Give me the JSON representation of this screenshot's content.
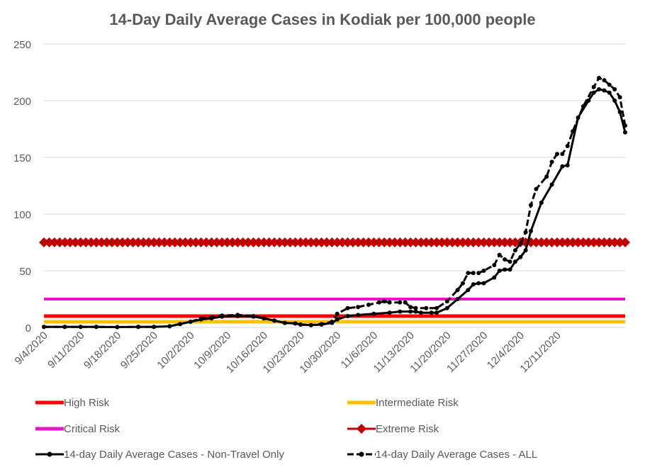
{
  "chart_data": {
    "type": "line",
    "title": "14-Day Daily Average Cases in Kodiak per 100,000 people",
    "xlabel": "",
    "ylabel": "",
    "ylim": [
      0,
      250
    ],
    "yticks": [
      0,
      50,
      100,
      150,
      200,
      250
    ],
    "x_start": "9/4/2020",
    "x_end": "12/17/2020",
    "x_tick_labels": [
      "9/4/2020",
      "9/11/2020",
      "9/18/2020",
      "9/25/2020",
      "10/2/2020",
      "10/9/2020",
      "10/16/2020",
      "10/23/2020",
      "10/30/2020",
      "11/6/2020",
      "11/13/2020",
      "11/20/2020",
      "11/27/2020",
      "12/4/2020",
      "12/11/2020"
    ],
    "grid": "horizontal",
    "legend_position": "bottom",
    "series": [
      {
        "name": "High Risk",
        "color": "#ff0000",
        "style": "line",
        "values": [
          10
        ]
      },
      {
        "name": "Intermediate Risk",
        "color": "#ffc000",
        "style": "line",
        "values": [
          5
        ]
      },
      {
        "name": "Critical Risk",
        "color": "#ee11cc",
        "style": "line",
        "values": [
          25
        ]
      },
      {
        "name": "Extreme Risk",
        "color": "#c00000",
        "style": "diamond",
        "values": [
          75
        ]
      },
      {
        "name": "14-day Daily Average Cases - Non-Travel Only",
        "color": "#000000",
        "style": "solid",
        "values": [
          [
            0,
            0.5
          ],
          [
            4,
            0.5
          ],
          [
            7,
            0.5
          ],
          [
            10,
            0.5
          ],
          [
            14,
            0.3
          ],
          [
            18,
            0.5
          ],
          [
            21,
            0.5
          ],
          [
            24,
            1
          ],
          [
            26,
            3
          ],
          [
            28,
            5
          ],
          [
            30,
            7
          ],
          [
            32,
            8
          ],
          [
            34,
            9.5
          ],
          [
            37,
            10
          ],
          [
            40,
            9.5
          ],
          [
            42,
            8
          ],
          [
            44,
            6
          ],
          [
            46,
            4
          ],
          [
            48,
            3.5
          ],
          [
            49,
            2.5
          ],
          [
            51,
            2
          ],
          [
            53,
            2.5
          ],
          [
            55,
            4
          ],
          [
            56,
            7
          ],
          [
            58,
            10
          ],
          [
            60,
            11
          ],
          [
            63,
            12
          ],
          [
            66,
            13
          ],
          [
            68,
            14
          ],
          [
            70,
            14
          ],
          [
            71,
            14
          ],
          [
            72,
            13
          ],
          [
            74,
            13
          ],
          [
            75,
            13
          ],
          [
            77,
            17
          ],
          [
            79,
            25
          ],
          [
            81,
            33
          ],
          [
            82,
            38
          ],
          [
            83,
            39
          ],
          [
            84,
            39
          ],
          [
            86,
            44
          ],
          [
            87,
            50
          ],
          [
            88,
            51
          ],
          [
            89,
            51
          ],
          [
            90,
            58
          ],
          [
            91,
            62
          ],
          [
            92,
            68
          ],
          [
            93,
            85
          ],
          [
            95,
            110
          ],
          [
            97,
            126
          ],
          [
            99,
            142
          ],
          [
            100,
            143
          ],
          [
            102,
            185
          ],
          [
            104,
            200
          ],
          [
            105,
            207
          ],
          [
            106,
            210
          ],
          [
            107,
            209
          ],
          [
            108,
            207
          ],
          [
            109,
            200
          ],
          [
            110,
            190
          ],
          [
            111,
            172
          ]
        ]
      },
      {
        "name": "14-day Daily Average Cases - ALL",
        "color": "#000000",
        "style": "dashed",
        "values": [
          [
            0,
            0.5
          ],
          [
            4,
            0.5
          ],
          [
            7,
            0.5
          ],
          [
            10,
            0.5
          ],
          [
            14,
            0.3
          ],
          [
            18,
            0.5
          ],
          [
            21,
            0.5
          ],
          [
            24,
            1
          ],
          [
            26,
            3
          ],
          [
            28,
            5
          ],
          [
            30,
            8
          ],
          [
            32,
            9
          ],
          [
            34,
            10.5
          ],
          [
            37,
            11
          ],
          [
            40,
            10
          ],
          [
            42,
            8
          ],
          [
            44,
            6
          ],
          [
            46,
            4
          ],
          [
            48,
            3.5
          ],
          [
            49,
            2.5
          ],
          [
            51,
            2
          ],
          [
            53,
            3
          ],
          [
            55,
            5
          ],
          [
            56,
            12
          ],
          [
            58,
            17
          ],
          [
            60,
            18
          ],
          [
            62,
            20
          ],
          [
            64,
            22
          ],
          [
            65,
            23
          ],
          [
            66,
            22
          ],
          [
            68,
            22
          ],
          [
            69,
            22
          ],
          [
            70,
            18
          ],
          [
            71,
            17
          ],
          [
            73,
            17
          ],
          [
            75,
            17
          ],
          [
            77,
            23
          ],
          [
            79,
            33
          ],
          [
            80,
            39
          ],
          [
            81,
            48
          ],
          [
            82,
            48
          ],
          [
            83,
            48
          ],
          [
            84,
            50
          ],
          [
            86,
            55
          ],
          [
            87,
            64
          ],
          [
            88,
            60
          ],
          [
            89,
            58
          ],
          [
            90,
            68
          ],
          [
            91,
            74
          ],
          [
            92,
            84
          ],
          [
            93,
            108
          ],
          [
            94,
            122
          ],
          [
            96,
            133
          ],
          [
            97,
            146
          ],
          [
            98,
            153
          ],
          [
            99,
            153
          ],
          [
            100,
            160
          ],
          [
            101,
            173
          ],
          [
            103,
            195
          ],
          [
            105,
            212
          ],
          [
            106,
            220
          ],
          [
            107,
            218
          ],
          [
            108,
            214
          ],
          [
            109,
            210
          ],
          [
            110,
            203
          ],
          [
            111,
            178
          ]
        ]
      }
    ]
  }
}
